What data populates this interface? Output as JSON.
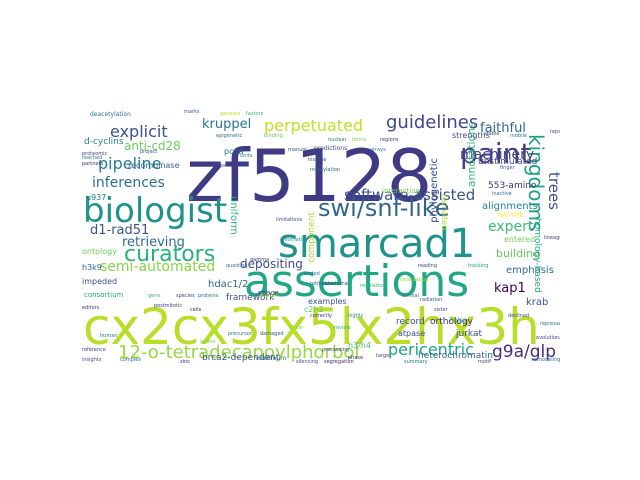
{
  "words": [
    {
      "text": "zf5128",
      "color": "#3e3a84"
    },
    {
      "text": "cx2cx3fx5lx2hx3h",
      "color": "#b8de29"
    },
    {
      "text": "assertions",
      "color": "#22a786"
    },
    {
      "text": "smarcad1",
      "color": "#20928c"
    },
    {
      "text": "biologist",
      "color": "#21918c"
    },
    {
      "text": "swi/snf-like",
      "color": "#31678e"
    },
    {
      "text": "paint",
      "color": "#433e85"
    },
    {
      "text": "curators",
      "color": "#2ab07f"
    },
    {
      "text": "kingdoms",
      "color": "#1f9e89"
    },
    {
      "text": "12-o-tetradecanoylphorbol",
      "color": "#95d840"
    },
    {
      "text": "g9a/glp",
      "color": "#472d7b"
    },
    {
      "text": "pericentric",
      "color": "#21a685"
    },
    {
      "text": "software-assisted",
      "color": "#3a548c"
    },
    {
      "text": "guidelines",
      "color": "#404688"
    },
    {
      "text": "perpetuated",
      "color": "#c2df23"
    },
    {
      "text": "explicit",
      "color": "#3b518b"
    },
    {
      "text": "pipeline",
      "color": "#287d8e"
    },
    {
      "text": "inferences",
      "color": "#2c728e"
    },
    {
      "text": "machinery",
      "color": "#414487"
    },
    {
      "text": "kruppel",
      "color": "#2a788e"
    },
    {
      "text": "anti-cd28",
      "color": "#6ccd5a"
    },
    {
      "text": "faithful",
      "color": "#33638d"
    },
    {
      "text": "semi-automated",
      "color": "#86d549"
    },
    {
      "text": "d1-rad51",
      "color": "#3b528b"
    },
    {
      "text": "retrieving",
      "color": "#2f6c8e"
    },
    {
      "text": "depositing",
      "color": "#3e4989"
    },
    {
      "text": "expert",
      "color": "#3fbc73"
    },
    {
      "text": "kap1",
      "color": "#440154"
    },
    {
      "text": "trees",
      "color": "#3a538b"
    },
    {
      "text": "annotations",
      "color": "#37b878"
    },
    {
      "text": "alignments",
      "color": "#25848e"
    },
    {
      "text": "building",
      "color": "#65cb5e"
    },
    {
      "text": "emphasis",
      "color": "#2e6e8e"
    },
    {
      "text": "krab",
      "color": "#3a548c"
    },
    {
      "text": "hdac1/2",
      "color": "#31688e"
    },
    {
      "text": "brca2-dependent",
      "color": "#3b528b"
    },
    {
      "text": "unstimulated",
      "color": "#3e4a89"
    },
    {
      "text": "553-amino",
      "color": "#46307e"
    },
    {
      "text": "homology-based",
      "color": "#29af7f"
    },
    {
      "text": "orthology",
      "color": "#482576"
    },
    {
      "text": "jurkat",
      "color": "#3e4989"
    },
    {
      "text": "heterochromatin",
      "color": "#30698e"
    },
    {
      "text": "record",
      "color": "#3b518b"
    },
    {
      "text": "framework",
      "color": "#3b528b"
    },
    {
      "text": "c2h2",
      "color": "#5ec962"
    },
    {
      "text": "h3/h4",
      "color": "#4ec36b"
    },
    {
      "text": "uniform",
      "color": "#2fb47c"
    },
    {
      "text": "phylogenetic",
      "color": "#3d4e8a"
    },
    {
      "text": "component",
      "color": "#a8db34"
    },
    {
      "text": "d-cyclins",
      "color": "#26828e"
    },
    {
      "text": "recombinase",
      "color": "#33638d"
    },
    {
      "text": "u937",
      "color": "#2a768e"
    },
    {
      "text": "ontology",
      "color": "#6ccd5a"
    },
    {
      "text": "h3k9",
      "color": "#31668e"
    },
    {
      "text": "impeded",
      "color": "#3b528b"
    },
    {
      "text": "consortium",
      "color": "#22a884"
    },
    {
      "text": "pcna",
      "color": "#2d718e"
    },
    {
      "text": "strengths",
      "color": "#3a548c"
    },
    {
      "text": "entered",
      "color": "#6ece58"
    },
    {
      "text": "interaction",
      "color": "#7ad151"
    },
    {
      "text": "examples",
      "color": "#3b528b"
    },
    {
      "text": "atpase",
      "color": "#3e4c8a"
    },
    {
      "text": "recruited",
      "color": "#addc30"
    },
    {
      "text": "h/c-link",
      "color": "#fde725"
    },
    {
      "text": "space",
      "color": "#46327e"
    },
    {
      "text": "predictions",
      "color": "#3f4889"
    },
    {
      "text": "deacetylation",
      "color": "#2a768e"
    },
    {
      "text": "helps",
      "color": "#35b779"
    },
    {
      "text": "maximum",
      "color": "#2c728e"
    },
    {
      "text": "phase",
      "color": "#482374"
    },
    {
      "text": "genome",
      "color": "#b5de2b"
    },
    {
      "text": "epigenetic",
      "color": "#2d708e"
    },
    {
      "text": "project",
      "color": "#3b528b"
    },
    {
      "text": "proteomic",
      "color": "#414487"
    },
    {
      "text": "partners",
      "color": "#46327e"
    },
    {
      "text": "reached",
      "color": "#287c8e"
    },
    {
      "text": "factors",
      "color": "#35b779"
    },
    {
      "text": "binding",
      "color": "#5ec962"
    },
    {
      "text": "arrays",
      "color": "#2a788e"
    },
    {
      "text": "marks",
      "color": "#3b528b"
    },
    {
      "text": "repair",
      "color": "#414487"
    },
    {
      "text": "remodeling",
      "color": "#2c728e"
    },
    {
      "text": "segregation",
      "color": "#482374"
    },
    {
      "text": "regulation",
      "color": "#35b779"
    },
    {
      "text": "localization",
      "color": "#8fd744"
    },
    {
      "text": "finger",
      "color": "#31688e"
    },
    {
      "text": "reference",
      "color": "#3e4a89"
    },
    {
      "text": "mobile",
      "color": "#2a788e"
    },
    {
      "text": "amino",
      "color": "#6ece58"
    },
    {
      "text": "stable",
      "color": "#3b528b"
    },
    {
      "text": "highly",
      "color": "#21918c"
    },
    {
      "text": "correctly",
      "color": "#46327e"
    },
    {
      "text": "radiation",
      "color": "#31688e"
    },
    {
      "text": "declined",
      "color": "#3b528b"
    },
    {
      "text": "sister",
      "color": "#414487"
    },
    {
      "text": "animal",
      "color": "#2c728e"
    },
    {
      "text": "reading",
      "color": "#414487"
    },
    {
      "text": "tracking",
      "color": "#1fa088"
    },
    {
      "text": "limitations",
      "color": "#3e4c8a"
    },
    {
      "text": "question",
      "color": "#2a788e"
    },
    {
      "text": "processing",
      "color": "#414487"
    },
    {
      "text": "precursor",
      "color": "#2a788e"
    },
    {
      "text": "damaged",
      "color": "#3b528b"
    },
    {
      "text": "cycle",
      "color": "#7ad151"
    },
    {
      "text": "proteins",
      "color": "#2c728e"
    },
    {
      "text": "domain",
      "color": "#a5db36"
    },
    {
      "text": "insights",
      "color": "#3b528b"
    },
    {
      "text": "complex",
      "color": "#31688e"
    },
    {
      "text": "zinc",
      "color": "#482374"
    },
    {
      "text": "silencing",
      "color": "#3e4a89"
    },
    {
      "text": "editors",
      "color": "#46327e"
    },
    {
      "text": "human",
      "color": "#2a788e"
    },
    {
      "text": "gene",
      "color": "#35b779"
    },
    {
      "text": "species",
      "color": "#414487"
    },
    {
      "text": "tested",
      "color": "#2c728e"
    },
    {
      "text": "retinoblastoma",
      "color": "#3b528b"
    },
    {
      "text": "postmitotic",
      "color": "#414487"
    },
    {
      "text": "chromatin",
      "color": "#21918c"
    },
    {
      "text": "regions",
      "color": "#46327e"
    },
    {
      "text": "terms",
      "color": "#7ad151"
    },
    {
      "text": "nuclear",
      "color": "#2a788e"
    },
    {
      "text": "histone",
      "color": "#3b528b"
    },
    {
      "text": "methylation",
      "color": "#31688e"
    },
    {
      "text": "cells",
      "color": "#482374"
    },
    {
      "text": "review",
      "color": "#35b779"
    },
    {
      "text": "target",
      "color": "#3e4a89"
    },
    {
      "text": "summary",
      "color": "#2c728e"
    },
    {
      "text": "sites",
      "color": "#414487"
    },
    {
      "text": "gamma",
      "color": "#46327e"
    },
    {
      "text": "manual",
      "color": "#3b528b"
    },
    {
      "text": "units",
      "color": "#2a788e"
    },
    {
      "text": "lineage",
      "color": "#414487"
    },
    {
      "text": "inactive",
      "color": "#31688e"
    },
    {
      "text": "evolutionary",
      "color": "#3e4a89"
    },
    {
      "text": "represses",
      "color": "#2c728e"
    },
    {
      "text": "motif",
      "color": "#46327e"
    }
  ]
}
